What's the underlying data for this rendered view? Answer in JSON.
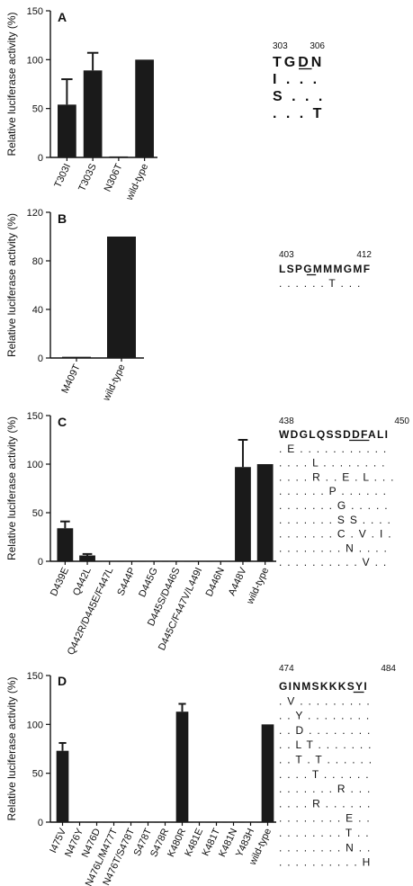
{
  "chart_data": [
    {
      "type": "bar",
      "panel": "A",
      "ylabel": "Relative luciferase activity (%)",
      "ylim": [
        0,
        150
      ],
      "yticks": [
        0,
        50,
        100,
        150
      ],
      "categories": [
        "T303I",
        "T303S",
        "N306T",
        "wild-type"
      ],
      "values": [
        54,
        89,
        1,
        100
      ],
      "errors": [
        26,
        18,
        0,
        0
      ],
      "alignment": {
        "numbers": [
          "303",
          "306"
        ],
        "header": "TGDN",
        "underline_index": 2,
        "rows": [
          "I . . .",
          "S . . .",
          ". . . T"
        ]
      }
    },
    {
      "type": "bar",
      "panel": "B",
      "ylabel": "Relative luciferase activity (%)",
      "ylim": [
        0,
        120
      ],
      "yticks": [
        0,
        40,
        80,
        120
      ],
      "categories": [
        "M409T",
        "wild-type"
      ],
      "values": [
        1,
        100
      ],
      "errors": [
        0,
        0
      ],
      "alignment": {
        "numbers": [
          "403",
          "412"
        ],
        "header": "LSPGMMMGMF",
        "underline_index": 3,
        "rows": [
          ". . . . . . T . . ."
        ]
      }
    },
    {
      "type": "bar",
      "panel": "C",
      "ylabel": "Relative luciferase activity (%)",
      "ylim": [
        0,
        150
      ],
      "yticks": [
        0,
        50,
        100,
        150
      ],
      "categories": [
        "D439E",
        "Q442L",
        "Q442R/D445E/F447L",
        "S444P",
        "D445G",
        "D445S/D446S",
        "D445C/F447V/L449I",
        "D446N",
        "A448V",
        "wild-type"
      ],
      "values": [
        34,
        6,
        0.5,
        0.5,
        0.5,
        0.5,
        0.5,
        0.5,
        97,
        100
      ],
      "errors": [
        7,
        1.5,
        0,
        0,
        0,
        0,
        0,
        0,
        28,
        0
      ],
      "alignment": {
        "numbers": [
          "438",
          "450"
        ],
        "header": "WDGLQSSDDFALI",
        "underline_index": 7,
        "rows": [
          ". E . . . . . . . . . . .",
          ". . . . L . . . . . . . .",
          ". . . . R . . E . L . . .",
          ". . . . . . P . . . . . .",
          ". . . . . . . G . . . . .",
          ". . . . . . . S S . . . .",
          ". . . . . . . C . V . I .",
          ". . . . . . . . N . . . .",
          ". . . . . . . . . . V . ."
        ]
      }
    },
    {
      "type": "bar",
      "panel": "D",
      "ylabel": "Relative luciferase activity (%)",
      "ylim": [
        0,
        150
      ],
      "yticks": [
        0,
        50,
        100,
        150
      ],
      "categories": [
        "I475V",
        "N476Y",
        "N476D",
        "N476L/M477T",
        "N476T/S478T",
        "S478T",
        "S478R",
        "K480R",
        "K481E",
        "K481T",
        "K481N",
        "Y483H",
        "wild-type"
      ],
      "values": [
        73,
        0.5,
        0.5,
        0.5,
        0.5,
        0.5,
        0.5,
        113,
        0.5,
        0.5,
        0.5,
        0.5,
        100
      ],
      "errors": [
        8,
        0,
        0,
        0,
        0,
        0,
        0,
        8,
        0,
        0,
        0,
        0,
        0
      ],
      "alignment": {
        "numbers": [
          "474",
          "484"
        ],
        "header": "GINMSKKKSYI",
        "underline_index": 7,
        "rows": [
          ". V . . . . . . . . .",
          ". . Y . . . . . . . .",
          ". . D . . . . . . . .",
          ". . L T . . . . . . .",
          ". . T . T . . . . . .",
          ". . . . T . . . . . .",
          ". . . . . . . R . . .",
          ". . . . R . . . . . .",
          ". . . . . . . . E . .",
          ". . . . . . . . T . .",
          ". . . . . . . . N . .",
          ". . . . . . . . . . H"
        ]
      }
    }
  ]
}
